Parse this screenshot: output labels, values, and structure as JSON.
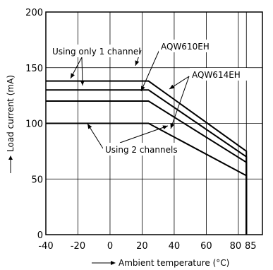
{
  "chart_data": {
    "type": "line",
    "xlabel": "Ambient temperature (°C)",
    "ylabel": "Load current (mA)",
    "xlim": [
      -40,
      95
    ],
    "ylim": [
      0,
      200
    ],
    "x_ticks": [
      -40,
      -20,
      0,
      20,
      40,
      60,
      80,
      85
    ],
    "x_tick_labels": [
      "-40",
      "-20",
      "0",
      "20",
      "40",
      "60",
      "80",
      "85"
    ],
    "y_ticks": [
      0,
      50,
      100,
      150,
      200
    ],
    "y_tick_labels": [
      "0",
      "50",
      "100",
      "150",
      "200"
    ],
    "grid": true,
    "series": [
      {
        "x": [
          -40,
          24,
          85,
          85
        ],
        "y": [
          138,
          138,
          75,
          0
        ]
      },
      {
        "x": [
          -40,
          24,
          85,
          85
        ],
        "y": [
          130,
          130,
          70,
          0
        ]
      },
      {
        "x": [
          -40,
          24,
          85,
          85
        ],
        "y": [
          120,
          120,
          65,
          0
        ]
      },
      {
        "x": [
          -40,
          24,
          85,
          85
        ],
        "y": [
          100,
          100,
          53,
          0
        ]
      }
    ],
    "annotations": [
      {
        "label": "Using only 1 channel"
      },
      {
        "label": "AQW610EH"
      },
      {
        "label": "AQW614EH"
      },
      {
        "label": "Using 2 channels"
      }
    ]
  }
}
